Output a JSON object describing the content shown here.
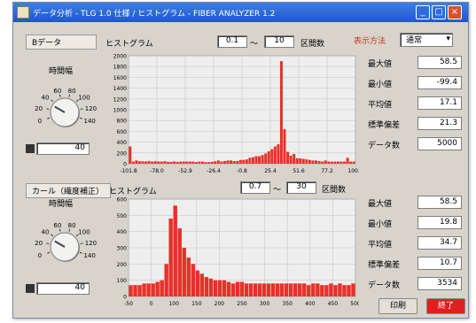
{
  "window": {
    "title": "データ分析 - TLG 1.0 仕様 / ヒストグラム - FIBER ANALYZER 1.2"
  },
  "top_panel": {
    "section_label": "Bデータ",
    "knob_label": "時間幅",
    "knob_ticks": [
      "0",
      "20",
      "40",
      "60",
      "80",
      "100",
      "120",
      "140"
    ],
    "knob_value": "40",
    "histogram_label": "ヒストグラム",
    "range_from": "0.1",
    "range_sep": "～",
    "range_to": "10",
    "unit_label": "区間数",
    "mode_label": "表示方法",
    "mode_value": "通常"
  },
  "bottom_panel": {
    "section_label": "カール（繊度補正）",
    "knob_label": "時間幅",
    "knob_ticks": [
      "0",
      "20",
      "40",
      "60",
      "80",
      "100",
      "120",
      "140"
    ],
    "knob_value": "40",
    "histogram_label": "ヒストグラム",
    "range_from": "0.7",
    "range_sep": "～",
    "range_to": "30",
    "unit_label": "区間数"
  },
  "stats_top": [
    {
      "label": "最大値",
      "value": "58.5"
    },
    {
      "label": "最小値",
      "value": "-99.4"
    },
    {
      "label": "平均値",
      "value": "17.1"
    },
    {
      "label": "標準偏差",
      "value": "21.3"
    },
    {
      "label": "データ数",
      "value": "5000"
    }
  ],
  "stats_bottom": [
    {
      "label": "最大値",
      "value": "58.5"
    },
    {
      "label": "最小値",
      "value": "19.8"
    },
    {
      "label": "平均値",
      "value": "34.7"
    },
    {
      "label": "標準偏差",
      "value": "10.7"
    },
    {
      "label": "データ数",
      "value": "3534"
    }
  ],
  "buttons": {
    "print": "印刷",
    "stop": "終了"
  },
  "colors": {
    "bar": "#e8302a",
    "plot_bg": "#eeeeee",
    "grid": "#c8c8c8",
    "titlebar": "#2a64d8",
    "stop_button": "#e02020"
  },
  "chart_data": [
    {
      "type": "bar",
      "title": "",
      "x_ticks": [
        "-101.8",
        "-78.0",
        "-52.9",
        "-26.4",
        "-0.8",
        "25.4",
        "51.6",
        "77.2",
        "100.7"
      ],
      "y_ticks": [
        "0",
        "200",
        "400",
        "600",
        "800",
        "1000",
        "1200",
        "1400",
        "1600",
        "1800",
        "2000"
      ],
      "ylim": [
        0,
        2000
      ],
      "values": [
        320,
        40,
        60,
        45,
        45,
        40,
        50,
        40,
        45,
        40,
        40,
        45,
        35,
        35,
        40,
        35,
        40,
        40,
        40,
        40,
        40,
        30,
        40,
        40,
        30,
        30,
        35,
        45,
        60,
        40,
        50,
        60,
        60,
        50,
        50,
        70,
        70,
        80,
        110,
        120,
        140,
        140,
        160,
        190,
        230,
        270,
        320,
        360,
        1900,
        640,
        220,
        150,
        180,
        100,
        100,
        90,
        80,
        70,
        60,
        60,
        50,
        40,
        60,
        40,
        40,
        40,
        40,
        40,
        40,
        110,
        40,
        40
      ]
    },
    {
      "type": "bar",
      "title": "",
      "x_ticks": [
        "-50",
        "0",
        "100",
        "150",
        "200",
        "250",
        "300",
        "350",
        "400",
        "450",
        "500"
      ],
      "y_ticks": [
        "0",
        "100",
        "200",
        "300",
        "400",
        "500",
        "600"
      ],
      "ylim": [
        0,
        600
      ],
      "values": [
        70,
        70,
        70,
        80,
        80,
        80,
        90,
        100,
        200,
        480,
        560,
        420,
        300,
        240,
        200,
        160,
        140,
        120,
        110,
        100,
        100,
        100,
        90,
        80,
        90,
        90,
        80,
        80,
        80,
        80,
        80,
        80,
        80,
        80,
        80,
        80,
        80,
        80,
        80,
        80,
        70,
        80,
        80,
        70,
        70,
        80,
        70,
        80,
        70,
        70,
        80
      ]
    }
  ]
}
